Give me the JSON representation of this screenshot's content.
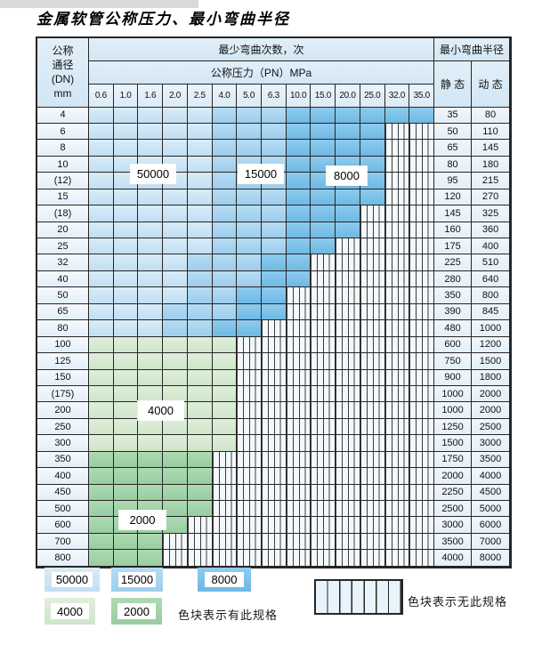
{
  "page": {
    "title": "金属软管公称压力、最小弯曲半径"
  },
  "header": {
    "dn_lines": [
      "公称",
      "通径",
      "(DN)",
      "mm"
    ],
    "cycles_header": "最少弯曲次数，次",
    "pressure_header": "公称压力（PN）MPa",
    "radius_header": "最小弯曲半径",
    "static_label": "静 态",
    "dynamic_label": "动 态"
  },
  "chart_data": {
    "type": "table",
    "title": "金属软管公称压力、最小弯曲半径",
    "pressure_columns_MPa": [
      "0.6",
      "1.0",
      "1.6",
      "2.0",
      "2.5",
      "4.0",
      "5.0",
      "6.3",
      "10.0",
      "15.0",
      "20.0",
      "25.0",
      "32.0",
      "35.0"
    ],
    "cycle_levels": [
      "50000",
      "15000",
      "8000",
      "4000",
      "2000"
    ],
    "cycle_colors": {
      "50000": "#cbe4f5",
      "15000": "#a8d5f0",
      "8000": "#7cc3e9",
      "4000": "#d6e9d2",
      "2000": "#9ed0a5"
    },
    "hatch_meaning": "无此规格",
    "rows": [
      {
        "dn": "4",
        "static": "35",
        "dynamic": "80",
        "bands": [
          [
            "50000",
            5
          ],
          [
            "15000",
            3
          ],
          [
            "8000",
            6
          ]
        ]
      },
      {
        "dn": "6",
        "static": "50",
        "dynamic": "110",
        "bands": [
          [
            "50000",
            5
          ],
          [
            "15000",
            3
          ],
          [
            "8000",
            4
          ]
        ]
      },
      {
        "dn": "8",
        "static": "65",
        "dynamic": "145",
        "bands": [
          [
            "50000",
            5
          ],
          [
            "15000",
            3
          ],
          [
            "8000",
            4
          ]
        ]
      },
      {
        "dn": "10",
        "static": "80",
        "dynamic": "180",
        "bands": [
          [
            "50000",
            5
          ],
          [
            "15000",
            3
          ],
          [
            "8000",
            4
          ]
        ]
      },
      {
        "dn": "(12)",
        "static": "95",
        "dynamic": "215",
        "bands": [
          [
            "50000",
            5
          ],
          [
            "15000",
            3
          ],
          [
            "8000",
            4
          ]
        ]
      },
      {
        "dn": "15",
        "static": "120",
        "dynamic": "270",
        "bands": [
          [
            "50000",
            5
          ],
          [
            "15000",
            3
          ],
          [
            "8000",
            4
          ]
        ]
      },
      {
        "dn": "(18)",
        "static": "145",
        "dynamic": "325",
        "bands": [
          [
            "50000",
            5
          ],
          [
            "15000",
            3
          ],
          [
            "8000",
            3
          ]
        ]
      },
      {
        "dn": "20",
        "static": "160",
        "dynamic": "360",
        "bands": [
          [
            "50000",
            5
          ],
          [
            "15000",
            3
          ],
          [
            "8000",
            3
          ]
        ]
      },
      {
        "dn": "25",
        "static": "175",
        "dynamic": "400",
        "bands": [
          [
            "50000",
            5
          ],
          [
            "15000",
            3
          ],
          [
            "8000",
            2
          ]
        ]
      },
      {
        "dn": "32",
        "static": "225",
        "dynamic": "510",
        "bands": [
          [
            "50000",
            4
          ],
          [
            "15000",
            3
          ],
          [
            "8000",
            2
          ]
        ]
      },
      {
        "dn": "40",
        "static": "280",
        "dynamic": "640",
        "bands": [
          [
            "50000",
            4
          ],
          [
            "15000",
            3
          ],
          [
            "8000",
            2
          ]
        ]
      },
      {
        "dn": "50",
        "static": "350",
        "dynamic": "800",
        "bands": [
          [
            "50000",
            4
          ],
          [
            "15000",
            2
          ],
          [
            "8000",
            2
          ]
        ]
      },
      {
        "dn": "65",
        "static": "390",
        "dynamic": "845",
        "bands": [
          [
            "50000",
            3
          ],
          [
            "15000",
            3
          ],
          [
            "8000",
            2
          ]
        ]
      },
      {
        "dn": "80",
        "static": "480",
        "dynamic": "1000",
        "bands": [
          [
            "50000",
            3
          ],
          [
            "15000",
            2
          ],
          [
            "8000",
            2
          ]
        ]
      },
      {
        "dn": "100",
        "static": "600",
        "dynamic": "1200",
        "bands": [
          [
            "4000",
            6
          ]
        ]
      },
      {
        "dn": "125",
        "static": "750",
        "dynamic": "1500",
        "bands": [
          [
            "4000",
            6
          ]
        ]
      },
      {
        "dn": "150",
        "static": "900",
        "dynamic": "1800",
        "bands": [
          [
            "4000",
            6
          ]
        ]
      },
      {
        "dn": "(175)",
        "static": "1000",
        "dynamic": "2000",
        "bands": [
          [
            "4000",
            6
          ]
        ]
      },
      {
        "dn": "200",
        "static": "1000",
        "dynamic": "2000",
        "bands": [
          [
            "4000",
            6
          ]
        ]
      },
      {
        "dn": "250",
        "static": "1250",
        "dynamic": "2500",
        "bands": [
          [
            "4000",
            6
          ]
        ]
      },
      {
        "dn": "300",
        "static": "1500",
        "dynamic": "3000",
        "bands": [
          [
            "4000",
            6
          ]
        ]
      },
      {
        "dn": "350",
        "static": "1750",
        "dynamic": "3500",
        "bands": [
          [
            "2000",
            5
          ]
        ]
      },
      {
        "dn": "400",
        "static": "2000",
        "dynamic": "4000",
        "bands": [
          [
            "2000",
            5
          ]
        ]
      },
      {
        "dn": "450",
        "static": "2250",
        "dynamic": "4500",
        "bands": [
          [
            "2000",
            5
          ]
        ]
      },
      {
        "dn": "500",
        "static": "2500",
        "dynamic": "5000",
        "bands": [
          [
            "2000",
            5
          ]
        ]
      },
      {
        "dn": "600",
        "static": "3000",
        "dynamic": "6000",
        "bands": [
          [
            "2000",
            4
          ]
        ]
      },
      {
        "dn": "700",
        "static": "3500",
        "dynamic": "7000",
        "bands": [
          [
            "2000",
            3
          ]
        ]
      },
      {
        "dn": "800",
        "static": "4000",
        "dynamic": "8000",
        "bands": [
          [
            "2000",
            3
          ]
        ]
      }
    ]
  },
  "overlays": {
    "c50000": "50000",
    "c15000": "15000",
    "c8000": "8000",
    "c4000": "4000",
    "c2000": "2000"
  },
  "legend": {
    "items": [
      {
        "label": "50000",
        "level": "50000"
      },
      {
        "label": "15000",
        "level": "15000"
      },
      {
        "label": "8000",
        "level": "8000"
      },
      {
        "label": "4000",
        "level": "4000"
      },
      {
        "label": "2000",
        "level": "2000"
      }
    ],
    "has_spec_note": "色块表示有此规格",
    "no_spec_note": "色块表示无此规格"
  }
}
